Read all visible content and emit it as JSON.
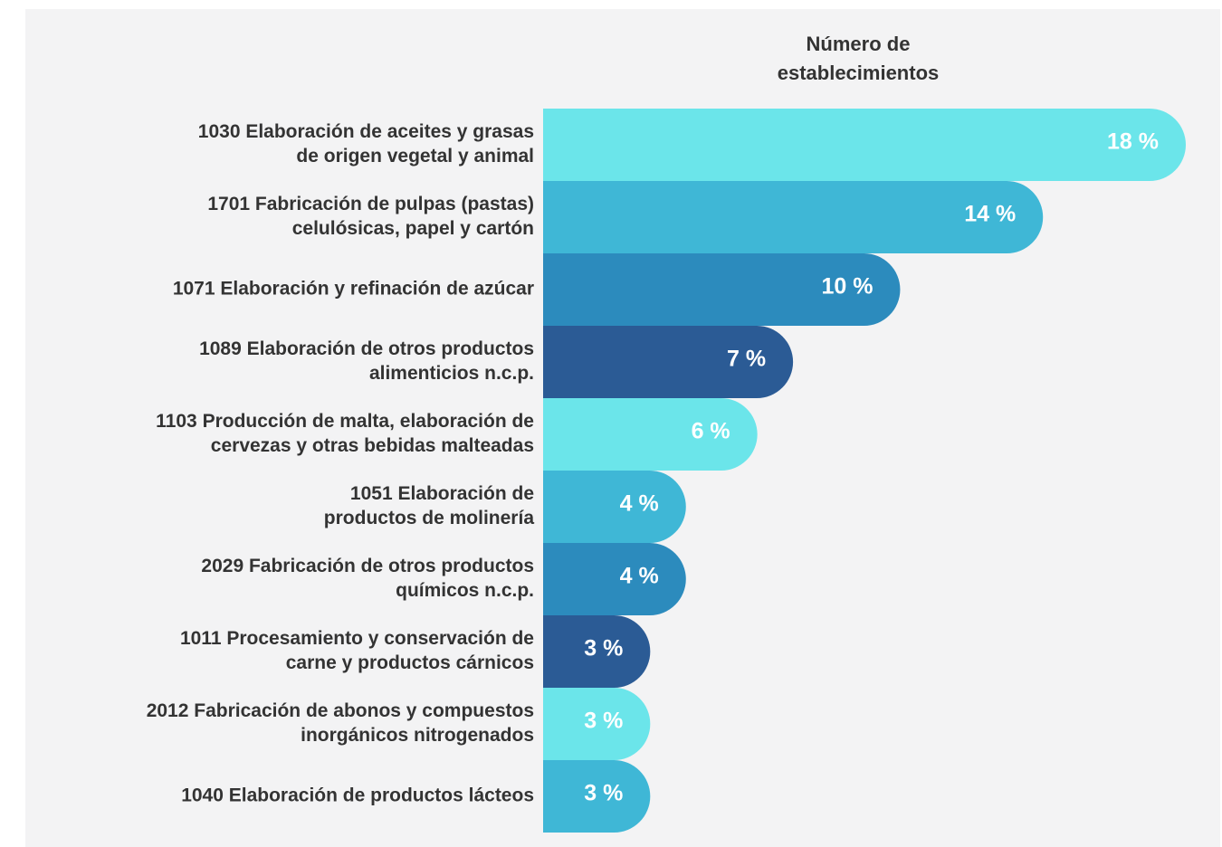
{
  "chart_data": {
    "type": "bar",
    "orientation": "horizontal",
    "title": [
      "Número de",
      "establecimientos"
    ],
    "categories": [
      [
        "1030 Elaboración de aceites y grasas",
        "de origen vegetal y animal"
      ],
      [
        "1701 Fabricación de pulpas (pastas)",
        "celulósicas, papel y cartón"
      ],
      [
        "1071 Elaboración y refinación de azúcar"
      ],
      [
        "1089 Elaboración de otros productos",
        "alimenticios n.c.p."
      ],
      [
        "1103 Producción de malta, elaboración de",
        "cervezas y otras bebidas malteadas"
      ],
      [
        "1051 Elaboración de",
        "productos de molinería"
      ],
      [
        "2029 Fabricación de otros productos",
        "químicos n.c.p."
      ],
      [
        "1011 Procesamiento y conservación de",
        "carne y productos cárnicos"
      ],
      [
        "2012 Fabricación de abonos y compuestos",
        "inorgánicos nitrogenados"
      ],
      [
        "1040 Elaboración de productos lácteos"
      ]
    ],
    "values": [
      18,
      14,
      10,
      7,
      6,
      4,
      4,
      3,
      3,
      3
    ],
    "value_labels": [
      "18 %",
      "14 %",
      "10 %",
      "7 %",
      "6 %",
      "4 %",
      "4 %",
      "3 %",
      "3 %",
      "3 %"
    ],
    "colors": [
      "#6be5ea",
      "#3fb7d6",
      "#2c8bbd",
      "#2b5b95",
      "#6be5ea",
      "#3fb7d6",
      "#2c8bbd",
      "#2b5b95",
      "#6be5ea",
      "#3fb7d6"
    ]
  }
}
